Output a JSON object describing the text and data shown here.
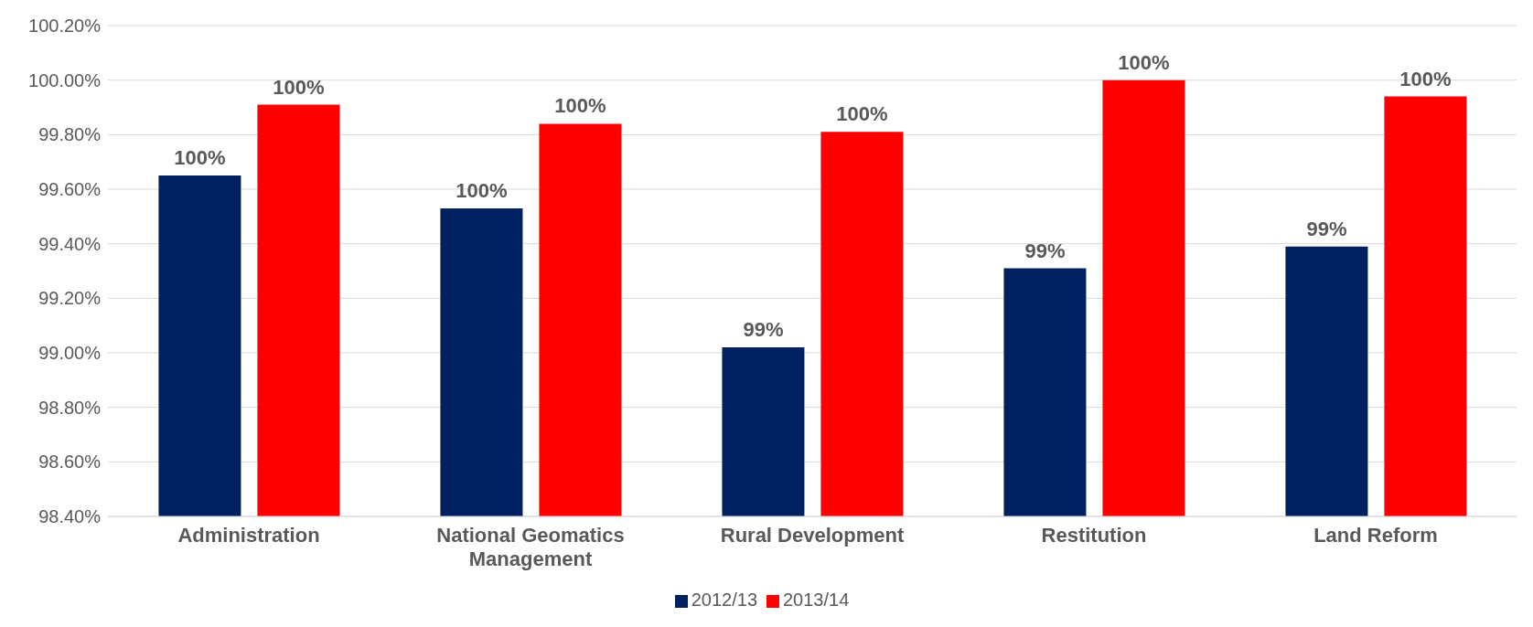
{
  "chart_data": {
    "type": "bar",
    "categories": [
      "Administration",
      "National Geomatics Management",
      "Rural Development",
      "Restitution",
      "Land Reform"
    ],
    "series": [
      {
        "name": "2012/13",
        "color": "#002060",
        "values": [
          99.65,
          99.53,
          99.02,
          99.31,
          99.39
        ],
        "value_labels": [
          "100%",
          "100%",
          "99%",
          "99%",
          "99%"
        ]
      },
      {
        "name": "2013/14",
        "color": "#ff0000",
        "values": [
          99.91,
          99.84,
          99.81,
          100.0,
          99.94
        ],
        "value_labels": [
          "100%",
          "100%",
          "100%",
          "100%",
          "100%"
        ]
      }
    ],
    "ylim": [
      98.4,
      100.2
    ],
    "yticks": [
      {
        "value": 98.4,
        "label": "98.40%"
      },
      {
        "value": 98.6,
        "label": "98.60%"
      },
      {
        "value": 98.8,
        "label": "98.80%"
      },
      {
        "value": 99.0,
        "label": "99.00%"
      },
      {
        "value": 99.2,
        "label": "99.20%"
      },
      {
        "value": 99.4,
        "label": "99.40%"
      },
      {
        "value": 99.6,
        "label": "99.60%"
      },
      {
        "value": 99.8,
        "label": "99.80%"
      },
      {
        "value": 100.0,
        "label": "100.00%"
      },
      {
        "value": 100.2,
        "label": "100.20%"
      }
    ],
    "grid": "y",
    "legend": "bottom"
  }
}
